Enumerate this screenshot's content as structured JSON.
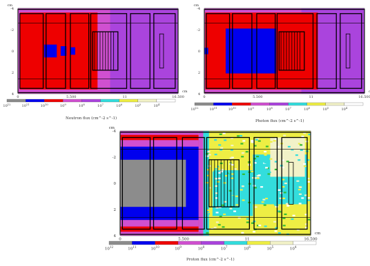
{
  "colors": {
    "gray": "#8c8c8c",
    "blue": "#0000ee",
    "red": "#ee0000",
    "darkred": "#c80000",
    "magenta": "#d050d0",
    "purple": "#aa44dd",
    "cyan": "#33dddd",
    "yellow": "#eeee44",
    "cream": "#f2f2c8",
    "white": "#ffffff",
    "green": "#33bb33",
    "outline": "#000000"
  },
  "chart_data": [
    {
      "type": "heatmap",
      "title": "Neutron flux (cm^-2 s^-1)",
      "xlabel": "cm",
      "ylabel": "cm",
      "xlim": [
        0,
        16.5
      ],
      "ylim": [
        -4,
        4
      ],
      "x_ticks": [
        "0",
        "5.500",
        "11",
        "16.500"
      ],
      "y_ticks": [
        "-4",
        "-2",
        "0",
        "2",
        "4"
      ],
      "colorbar_labels": [
        "10^12",
        "10^11",
        "10^10",
        "10^9",
        "10^8",
        "10^7",
        "10^6",
        "10^5",
        "10^4"
      ],
      "colorbar_colors": [
        "#8c8c8c",
        "#0000ee",
        "#ee0000",
        "#d050d0",
        "#aa44dd",
        "#33dddd",
        "#eeee44",
        "#f2f2c8",
        "#ffffff"
      ],
      "regions": [
        {
          "level": "10^8",
          "x": [
            0,
            16.5
          ],
          "y": [
            -4,
            4
          ]
        },
        {
          "level": "10^9",
          "x": [
            0,
            9.5
          ],
          "y": [
            -4,
            4
          ]
        },
        {
          "level": "10^10",
          "x": [
            0.2,
            8.2
          ],
          "y": [
            -3.6,
            3.6
          ]
        },
        {
          "level": "10^10",
          "x": [
            1.2,
            6.5
          ],
          "y": [
            -2.2,
            2.2
          ]
        },
        {
          "level": "10^11",
          "x": [
            2.7,
            4.0
          ],
          "y": [
            -0.6,
            0.6
          ]
        },
        {
          "level": "10^11",
          "x": [
            4.4,
            5.0
          ],
          "y": [
            -0.45,
            0.45
          ]
        },
        {
          "level": "10^11",
          "x": [
            5.4,
            5.9
          ],
          "y": [
            -0.35,
            0.35
          ]
        }
      ]
    },
    {
      "type": "heatmap",
      "title": "Photon flux (cm^-2 s^-1)",
      "xlabel": "cm",
      "ylabel": "cm",
      "xlim": [
        0,
        16.5
      ],
      "ylim": [
        -4,
        4
      ],
      "x_ticks": [
        "0",
        "5.500",
        "11",
        "16.500"
      ],
      "y_ticks": [
        "-4",
        "-2",
        "0",
        "2",
        "4"
      ],
      "colorbar_labels": [
        "10^12",
        "10^11",
        "10^10",
        "10^9",
        "10^8",
        "10^7",
        "10^6",
        "10^5",
        "10^4"
      ],
      "colorbar_colors": [
        "#8c8c8c",
        "#0000ee",
        "#ee0000",
        "#d050d0",
        "#aa44dd",
        "#33dddd",
        "#eeee44",
        "#f2f2c8",
        "#ffffff"
      ],
      "regions": [
        {
          "level": "10^8",
          "x": [
            0,
            16.5
          ],
          "y": [
            -4,
            4
          ]
        },
        {
          "level": "10^9",
          "x": [
            0,
            10.0
          ],
          "y": [
            -4,
            4
          ]
        },
        {
          "level": "10^10",
          "x": [
            0.1,
            11.7
          ],
          "y": [
            -3.6,
            3.6
          ]
        },
        {
          "level": "10^10",
          "x": [
            1.5,
            9.3
          ],
          "y": [
            -3.1,
            3.1
          ]
        },
        {
          "level": "10^11",
          "x": [
            2.2,
            7.4
          ],
          "y": [
            -2.1,
            2.1
          ]
        },
        {
          "level": "10^11",
          "x": [
            0,
            0.4
          ],
          "y": [
            -0.3,
            0.3
          ]
        }
      ]
    },
    {
      "type": "heatmap",
      "title": "Proton flux (cm^-2 s^-1)",
      "xlabel": "cm",
      "ylabel": "cm",
      "xlim": [
        0,
        16.5
      ],
      "ylim": [
        -4,
        4
      ],
      "x_ticks": [
        "0",
        "5.500",
        "11",
        "16.500"
      ],
      "y_ticks": [
        "-4",
        "-2",
        "0",
        "2",
        "4"
      ],
      "colorbar_labels": [
        "10^12",
        "10^11",
        "10^10",
        "10^9",
        "10^8",
        "10^7",
        "10^6",
        "10^5",
        "10^4"
      ],
      "colorbar_colors": [
        "#8c8c8c",
        "#0000ee",
        "#ee0000",
        "#d050d0",
        "#aa44dd",
        "#33dddd",
        "#eeee44",
        "#f2f2c8",
        "#ffffff"
      ],
      "regions": [
        {
          "level": "10^6",
          "x": [
            0,
            16.5
          ],
          "y": [
            -4,
            4
          ]
        },
        {
          "level": "10^9",
          "x": [
            0,
            6.8
          ],
          "y": [
            -4,
            4
          ]
        },
        {
          "level": "10^10",
          "x": [
            0,
            6.8
          ],
          "y": [
            -3.7,
            3.7
          ]
        },
        {
          "level": "10^9",
          "x": [
            0,
            6.8
          ],
          "y": [
            -3.3,
            3.3
          ]
        },
        {
          "level": "10^11",
          "x": [
            0,
            6.8
          ],
          "y": [
            -2.8,
            2.8
          ]
        },
        {
          "level": "10^12",
          "x": [
            0,
            5.7
          ],
          "y": [
            -1.8,
            1.8
          ]
        },
        {
          "level": "10^9",
          "x": [
            6.8,
            7.2
          ],
          "y": [
            -4,
            4
          ]
        },
        {
          "level": "10^7",
          "x": [
            7.2,
            7.7
          ],
          "y": [
            -4,
            4
          ]
        },
        {
          "level": "10^7",
          "x": [
            8.0,
            11.5
          ],
          "y": [
            -1.0,
            2.5
          ]
        },
        {
          "level": "10^7",
          "x": [
            11.5,
            16.2
          ],
          "y": [
            -2.2,
            1.6
          ]
        },
        {
          "level": "10^5",
          "x": [
            13.0,
            16.0
          ],
          "y": [
            -3.5,
            -0.5
          ]
        }
      ]
    }
  ]
}
